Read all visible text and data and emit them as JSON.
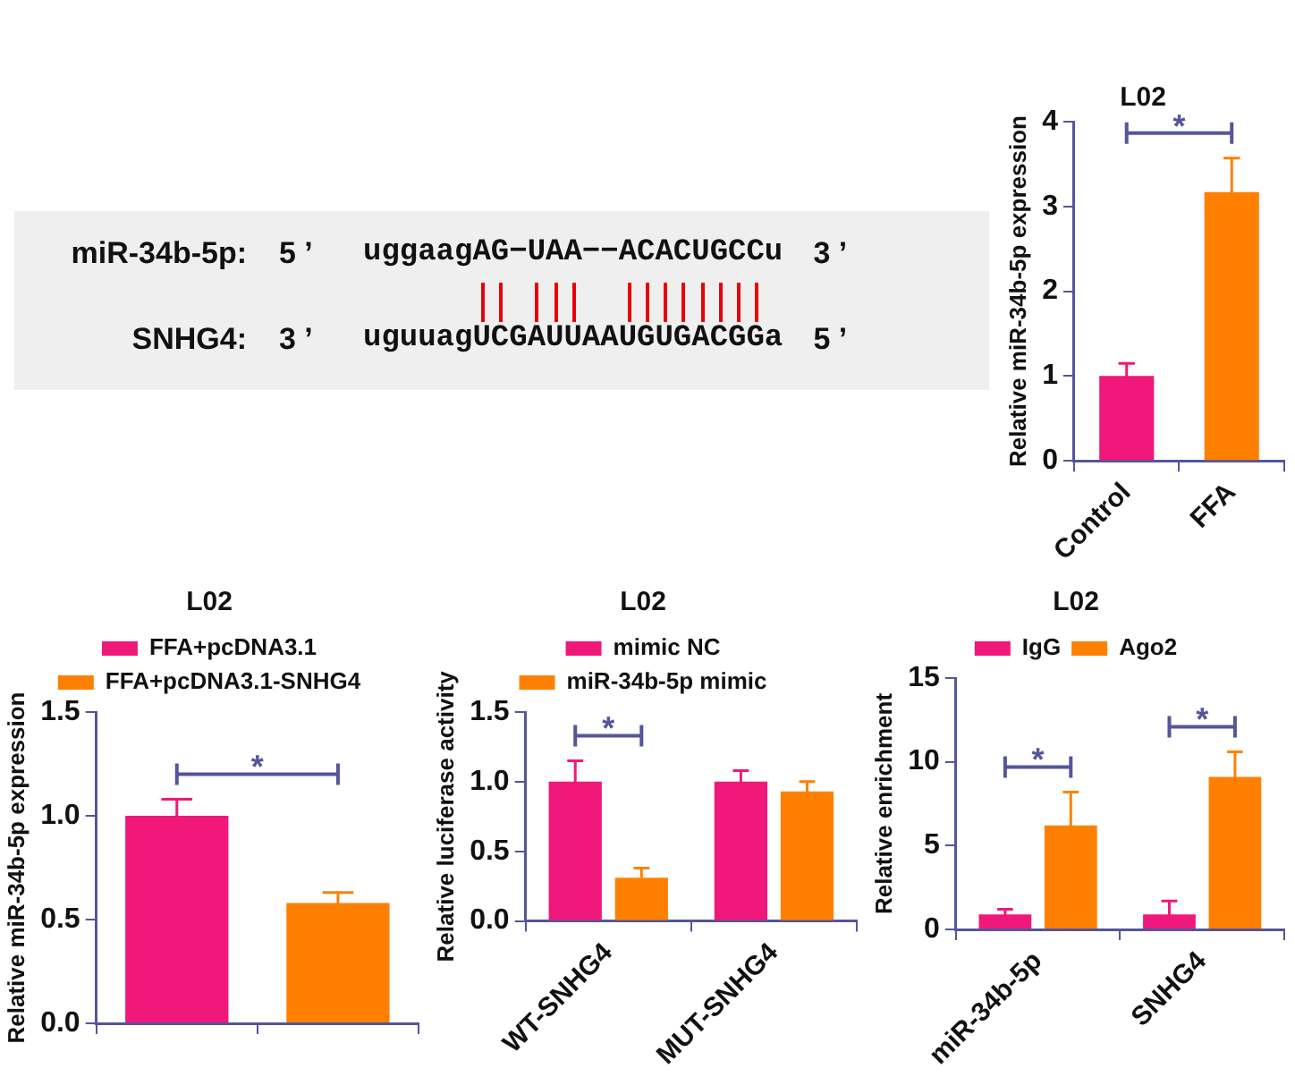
{
  "chart_data": [
    {
      "type": "other",
      "annotations": [
        "miR-34b-5p:",
        "5 ’",
        "uggaagAG−UAA−−ACACUGCCu",
        "3 ’",
        "SNHG4:",
        "3 ’",
        "uguuagUCGAUUAAUGUGACGGa",
        "5 ’"
      ]
    },
    {
      "type": "bar",
      "title": "L02",
      "ylabel": "Relative miR-34b-5p expression",
      "categories": [
        "Control",
        "FFA"
      ],
      "values": [
        1.0,
        3.17
      ],
      "errors": [
        0.15,
        0.4
      ],
      "colors": [
        "#f0187a",
        "#ff8000"
      ],
      "ylim": [
        0,
        4
      ],
      "yticks": [
        0,
        1,
        2,
        3,
        4
      ],
      "grid": false,
      "legend": false,
      "annotations": [
        "*"
      ]
    },
    {
      "type": "bar",
      "title": "L02",
      "ylabel": "Relative miR-34b-5p expression",
      "categories": [
        null,
        null
      ],
      "series": [
        {
          "name": "FFA+pcDNA3.1",
          "color": "#f0187a",
          "values": [
            1.0,
            null
          ],
          "errors": [
            0.08,
            null
          ]
        },
        {
          "name": "FFA+pcDNA3.1-SNHG4",
          "color": "#ff8000",
          "values": [
            null,
            0.58
          ],
          "errors": [
            null,
            0.05
          ]
        }
      ],
      "ylim": [
        0,
        1.5
      ],
      "yticks": [
        {
          "value": 0,
          "label": "0.0"
        },
        {
          "value": 0.5,
          "label": "0.5"
        },
        {
          "value": 1,
          "label": "1.0"
        },
        {
          "value": 1.5,
          "label": "1.5"
        }
      ],
      "grid": false,
      "legend": "top",
      "annotations": [
        "*"
      ]
    },
    {
      "type": "bar",
      "title": "L02",
      "ylabel": "Relative luciferase activity",
      "categories": [
        "WT-SNHG4",
        "MUT-SNHG4"
      ],
      "series": [
        {
          "name": "mimic NC",
          "color": "#f0187a",
          "values": [
            1.0,
            1.0
          ],
          "errors": [
            0.15,
            0.08
          ]
        },
        {
          "name": "miR-34b-5p mimic",
          "color": "#ff8000",
          "values": [
            0.31,
            0.93
          ],
          "errors": [
            0.07,
            0.07
          ]
        }
      ],
      "ylim": [
        0,
        1.5
      ],
      "yticks": [
        {
          "value": 0,
          "label": "0.0"
        },
        {
          "value": 0.5,
          "label": "0.5"
        },
        {
          "value": 1,
          "label": "1.0"
        },
        {
          "value": 1.5,
          "label": "1.5"
        }
      ],
      "grid": false,
      "legend": "top",
      "annotations": [
        "*"
      ]
    },
    {
      "type": "bar",
      "title": "L02",
      "ylabel": "Relative enrichment",
      "categories": [
        "miR-34b-5p",
        "SNHG4"
      ],
      "series": [
        {
          "name": "IgG",
          "color": "#f0187a",
          "values": [
            0.9,
            0.9
          ],
          "errors": [
            0.3,
            0.8
          ]
        },
        {
          "name": "Ago2",
          "color": "#ff8000",
          "values": [
            6.2,
            9.1
          ],
          "errors": [
            2.0,
            1.5
          ]
        }
      ],
      "ylim": [
        0,
        15
      ],
      "yticks": [
        0,
        5,
        10,
        15
      ],
      "grid": false,
      "legend": "top",
      "annotations": [
        "*",
        "*"
      ]
    }
  ]
}
